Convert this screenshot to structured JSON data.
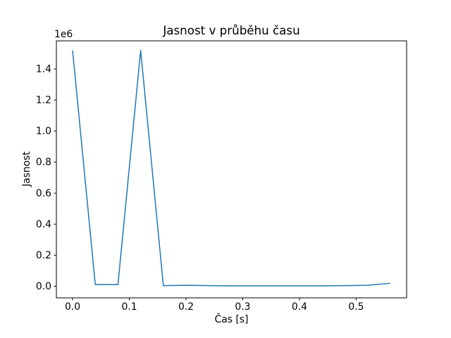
{
  "figure": {
    "background": "#ffffff",
    "axes_edge_color": "#000000",
    "tick_color": "#000000"
  },
  "chart_data": {
    "type": "line",
    "title": "Jasnost v průběhu času",
    "xlabel": "Čas [s]",
    "ylabel": "Jasnost",
    "y_offset_text": "1e6",
    "line_color": "#1f77b4",
    "grid": false,
    "legend": null,
    "x": [
      0.0,
      0.04,
      0.08,
      0.12,
      0.16,
      0.2,
      0.24,
      0.28,
      0.32,
      0.36,
      0.4,
      0.44,
      0.48,
      0.52,
      0.56
    ],
    "y": [
      1520000,
      11000,
      11000,
      1520000,
      4000,
      6000,
      4000,
      3000,
      3000,
      3000,
      3000,
      3000,
      4000,
      6000,
      19000
    ],
    "xlim": [
      -0.0286,
      0.5889
    ],
    "ylim": [
      -74900,
      1581300
    ],
    "xticks": {
      "values": [
        0.0,
        0.1,
        0.2,
        0.3,
        0.4,
        0.5
      ],
      "labels": [
        "0.0",
        "0.1",
        "0.2",
        "0.3",
        "0.4",
        "0.5"
      ]
    },
    "yticks": {
      "values": [
        0,
        200000,
        400000,
        600000,
        800000,
        1000000,
        1200000,
        1400000
      ],
      "labels": [
        "0.0",
        "0.2",
        "0.4",
        "0.6",
        "0.8",
        "1.0",
        "1.2",
        "1.4"
      ]
    }
  }
}
